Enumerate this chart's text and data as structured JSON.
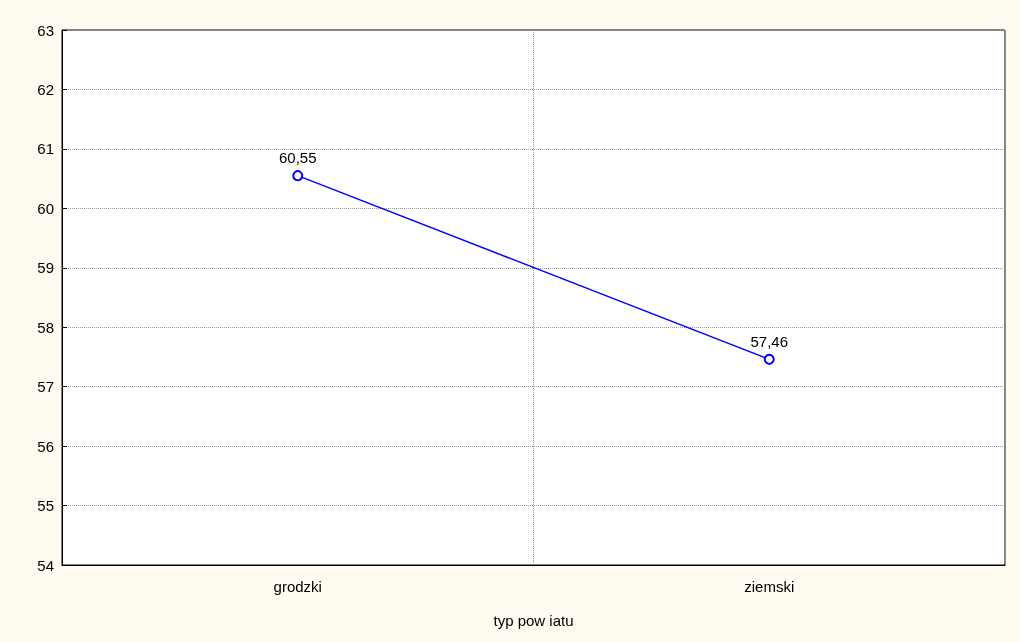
{
  "chart_data": {
    "type": "line",
    "xlabel": "typ pow iatu",
    "categories": [
      "grodzki",
      "ziemski"
    ],
    "series": [
      {
        "color": "#0000ff",
        "values": [
          60.55,
          57.46
        ],
        "value_labels": [
          "60,55",
          "57,46"
        ]
      }
    ],
    "ylim": [
      54,
      63
    ],
    "yticks": [
      54,
      55,
      56,
      57,
      58,
      59,
      60,
      61,
      62,
      63
    ],
    "grid": true,
    "marker": "circle",
    "line_style": "solid"
  }
}
